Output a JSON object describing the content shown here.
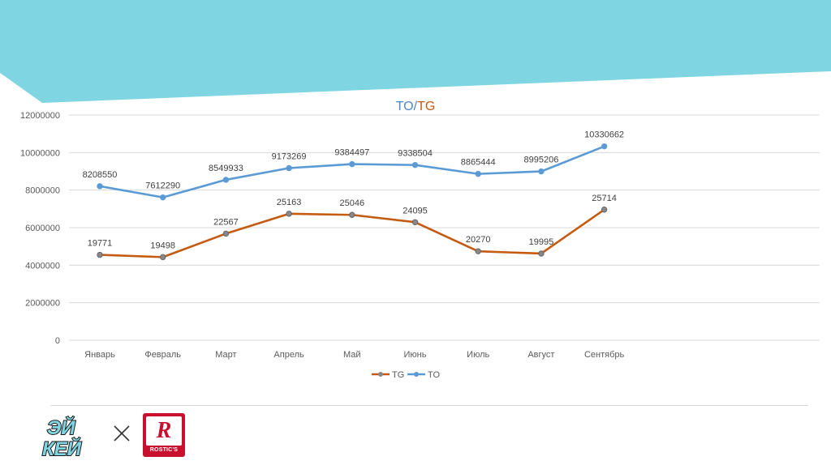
{
  "title": {
    "to": "TO",
    "separator": "/",
    "tg": "TG"
  },
  "colors": {
    "to": "#5B9BD5",
    "tg": "#C55A11",
    "banner": "#7FD6E2",
    "grid": "#D9D9D9",
    "axis_text": "#595959"
  },
  "legend": {
    "tg": "TG",
    "to": "TO"
  },
  "logos": {
    "left": "ЭЙ КЕЙ",
    "right": "ROSTIC'S"
  },
  "chart_data": {
    "type": "line",
    "title": "TO/TG",
    "categories": [
      "Январь",
      "Февраль",
      "Март",
      "Апрель",
      "Май",
      "Июнь",
      "Июль",
      "Август",
      "Сентябрь"
    ],
    "series": [
      {
        "name": "TG",
        "values": [
          4550000,
          4430000,
          5680000,
          6740000,
          6680000,
          6290000,
          4740000,
          4620000,
          6960000
        ],
        "labels": [
          "19771",
          "19498",
          "22567",
          "25163",
          "25046",
          "24095",
          "20270",
          "19995",
          "25714"
        ]
      },
      {
        "name": "TO",
        "values": [
          8208550,
          7612290,
          8549933,
          9173269,
          9384497,
          9338504,
          8865444,
          8995206,
          10330662
        ],
        "labels": [
          "8208550",
          "7612290",
          "8549933",
          "9173269",
          "9384497",
          "9338504",
          "8865444",
          "8995206",
          "10330662"
        ]
      }
    ],
    "yticks": [
      "0",
      "2000000",
      "4000000",
      "6000000",
      "8000000",
      "10000000",
      "12000000"
    ],
    "ylim": [
      0,
      12000000
    ],
    "grid": true,
    "legend_position": "bottom"
  }
}
